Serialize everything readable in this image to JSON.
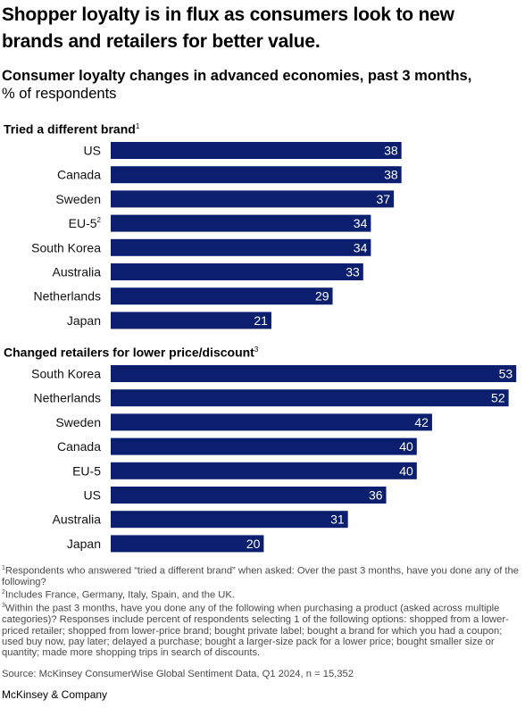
{
  "headline": "Shopper loyalty is in flux as consumers look to new brands and retailers for better value.",
  "subtitle": "Consumer loyalty changes in advanced economies, past 3 months,",
  "unit": "% of respondents",
  "chart_data": [
    {
      "type": "bar",
      "orientation": "horizontal",
      "title": "Tried a different brand",
      "title_footnote": "1",
      "categories": [
        "US",
        "Canada",
        "Sweden",
        "EU-5",
        "South Korea",
        "Australia",
        "Netherlands",
        "Japan"
      ],
      "category_footnotes": {
        "EU-5": "2"
      },
      "values": [
        38,
        38,
        37,
        34,
        34,
        33,
        29,
        21
      ],
      "unit": "% of respondents",
      "color": "#0b1f6e",
      "grid": false
    },
    {
      "type": "bar",
      "orientation": "horizontal",
      "title": "Changed retailers for lower price/discount",
      "title_footnote": "3",
      "categories": [
        "South Korea",
        "Netherlands",
        "Sweden",
        "Canada",
        "EU-5",
        "US",
        "Australia",
        "Japan"
      ],
      "category_footnotes": {},
      "values": [
        53,
        52,
        42,
        40,
        40,
        36,
        31,
        20
      ],
      "unit": "% of respondents",
      "color": "#0b1f6e",
      "grid": false
    }
  ],
  "footnotes": [
    {
      "mark": "1",
      "text": "Respondents who answered “tried a different brand” when asked: Over the past 3 months, have you done any of the following?"
    },
    {
      "mark": "2",
      "text": "Includes France, Germany, Italy, Spain, and the UK."
    },
    {
      "mark": "3",
      "text": "Within the past 3 months, have you done any of the following when purchasing a product (asked across multiple categories)? Responses include percent of respondents selecting 1 of the following options: shopped from a lower-priced retailer; shopped from lower-price brand; bought private label; bought a brand for which you had a coupon; used buy now, pay later; delayed a purchase; bought a larger-size pack for a lower price; bought smaller size or quantity; made more shopping trips in search of discounts."
    }
  ],
  "source": "Source: McKinsey ConsumerWise Global Sentiment Data, Q1 2024, n = 15,352",
  "brand": "McKinsey & Company"
}
